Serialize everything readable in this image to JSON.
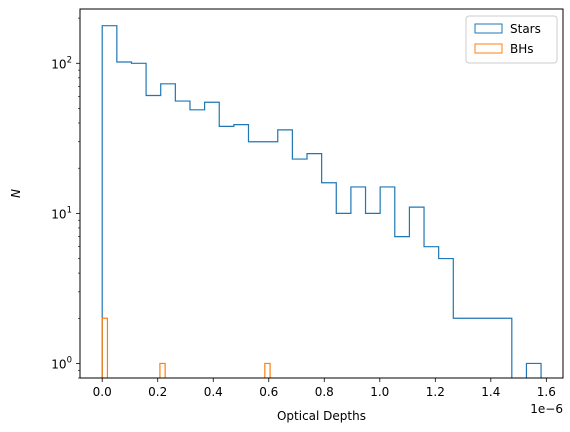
{
  "chart_data": {
    "type": "histogram",
    "title": "",
    "xlabel": "Optical Depths",
    "ylabel": "N",
    "x_offset_label": "1e−6",
    "yscale": "log",
    "xlim": [
      -0.08,
      1.66
    ],
    "ylim": [
      0.8,
      230
    ],
    "x_ticks": [
      {
        "value": 0.0,
        "label": "0.0"
      },
      {
        "value": 0.2,
        "label": "0.2"
      },
      {
        "value": 0.4,
        "label": "0.4"
      },
      {
        "value": 0.6,
        "label": "0.6"
      },
      {
        "value": 0.8,
        "label": "0.8"
      },
      {
        "value": 1.0,
        "label": "1.0"
      },
      {
        "value": 1.2,
        "label": "1.2"
      },
      {
        "value": 1.4,
        "label": "1.4"
      },
      {
        "value": 1.6,
        "label": "1.6"
      }
    ],
    "y_ticks": [
      {
        "value": 1,
        "base": "10",
        "exp": "0"
      },
      {
        "value": 10,
        "base": "10",
        "exp": "1"
      },
      {
        "value": 100,
        "base": "10",
        "exp": "2"
      }
    ],
    "legend_placement": "top-right",
    "grid": false,
    "series": [
      {
        "name": "Stars",
        "color": "#1f77b4",
        "bin_edges": [
          0.0,
          0.0527,
          0.1054,
          0.1581,
          0.2108,
          0.2635,
          0.3162,
          0.3689,
          0.4216,
          0.4743,
          0.527,
          0.5797,
          0.6324,
          0.6851,
          0.7378,
          0.7905,
          0.8432,
          0.8959,
          0.9486,
          1.0013,
          1.054,
          1.1067,
          1.1594,
          1.2121,
          1.2648,
          1.3175,
          1.3702,
          1.4229,
          1.4756,
          1.5283,
          1.581
        ],
        "counts": [
          178,
          102,
          100,
          61,
          73,
          56,
          49,
          55,
          38,
          39,
          30,
          30,
          36,
          23,
          25,
          16,
          10,
          15,
          10,
          15,
          7,
          11,
          6,
          5,
          2,
          2,
          2,
          2,
          0,
          1
        ]
      },
      {
        "name": "BHs",
        "color": "#ff7f0e",
        "bin_edges": [
          0.0,
          0.0189,
          0.0378,
          0.0567,
          0.0756,
          0.0945,
          0.1134,
          0.1323,
          0.1512,
          0.1701,
          0.189,
          0.2079,
          0.2268,
          0.2457,
          0.2646,
          0.2835,
          0.3024,
          0.3213,
          0.3402,
          0.3591,
          0.378,
          0.3969,
          0.4158,
          0.4347,
          0.4536,
          0.4725,
          0.4914,
          0.5103,
          0.5292,
          0.5481,
          0.567,
          0.5859,
          0.6048
        ],
        "counts": [
          2,
          0,
          0,
          0,
          0,
          0,
          0,
          0,
          0,
          0,
          0,
          1,
          0,
          0,
          0,
          0,
          0,
          0,
          0,
          0,
          0,
          0,
          0,
          0,
          0,
          0,
          0,
          0,
          0,
          0,
          0,
          1
        ]
      }
    ]
  }
}
